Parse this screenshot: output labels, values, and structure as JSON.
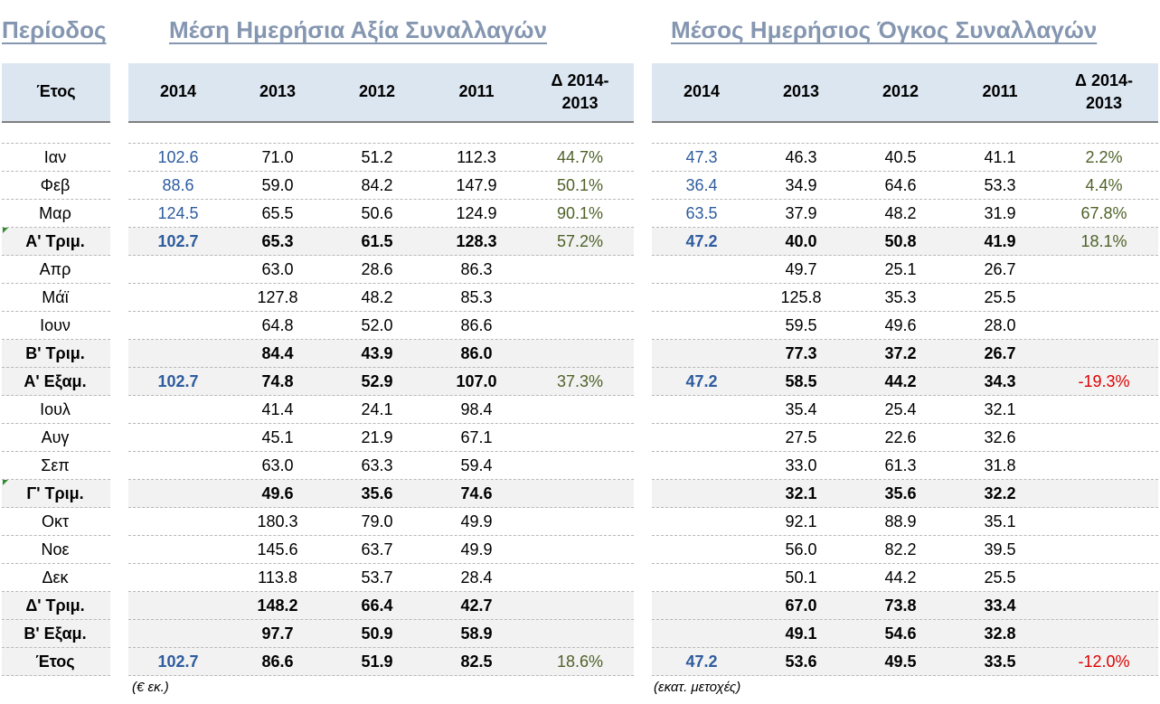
{
  "headers": {
    "period": "Περίοδος",
    "value": "Μέση Ημερήσια Αξία Συναλλαγών",
    "volume": "Μέσος Ημερήσιος Όγκος Συναλλαγών"
  },
  "columns": {
    "year_label": "Έτος",
    "years": [
      "2014",
      "2013",
      "2012",
      "2011"
    ],
    "delta": "Δ 2014-\n2013"
  },
  "rows": [
    {
      "label": "Ιαν",
      "bold": false,
      "v": [
        "102.6",
        "71.0",
        "51.2",
        "112.3",
        "44.7%"
      ],
      "o": [
        "47.3",
        "46.3",
        "40.5",
        "41.1",
        "2.2%"
      ]
    },
    {
      "label": "Φεβ",
      "bold": false,
      "v": [
        "88.6",
        "59.0",
        "84.2",
        "147.9",
        "50.1%"
      ],
      "o": [
        "36.4",
        "34.9",
        "64.6",
        "53.3",
        "4.4%"
      ]
    },
    {
      "label": "Μαρ",
      "bold": false,
      "v": [
        "124.5",
        "65.5",
        "50.6",
        "124.9",
        "90.1%"
      ],
      "o": [
        "63.5",
        "37.9",
        "48.2",
        "31.9",
        "67.8%"
      ]
    },
    {
      "label": "Α' Τριμ.",
      "bold": true,
      "v": [
        "102.7",
        "65.3",
        "61.5",
        "128.3",
        "57.2%"
      ],
      "o": [
        "47.2",
        "40.0",
        "50.8",
        "41.9",
        "18.1%"
      ]
    },
    {
      "label": "Απρ",
      "bold": false,
      "v": [
        "",
        "63.0",
        "28.6",
        "86.3",
        ""
      ],
      "o": [
        "",
        "49.7",
        "25.1",
        "26.7",
        ""
      ]
    },
    {
      "label": "Μάϊ",
      "bold": false,
      "v": [
        "",
        "127.8",
        "48.2",
        "85.3",
        ""
      ],
      "o": [
        "",
        "125.8",
        "35.3",
        "25.5",
        ""
      ]
    },
    {
      "label": "Ιουν",
      "bold": false,
      "v": [
        "",
        "64.8",
        "52.0",
        "86.6",
        ""
      ],
      "o": [
        "",
        "59.5",
        "49.6",
        "28.0",
        ""
      ]
    },
    {
      "label": "Β' Τριμ.",
      "bold": true,
      "v": [
        "",
        "84.4",
        "43.9",
        "86.0",
        ""
      ],
      "o": [
        "",
        "77.3",
        "37.2",
        "26.7",
        ""
      ]
    },
    {
      "label": "Α' Εξαμ.",
      "bold": true,
      "v": [
        "102.7",
        "74.8",
        "52.9",
        "107.0",
        "37.3%"
      ],
      "o": [
        "47.2",
        "58.5",
        "44.2",
        "34.3",
        "-19.3%"
      ]
    },
    {
      "label": "Ιουλ",
      "bold": false,
      "v": [
        "",
        "41.4",
        "24.1",
        "98.4",
        ""
      ],
      "o": [
        "",
        "35.4",
        "25.4",
        "32.1",
        ""
      ]
    },
    {
      "label": "Αυγ",
      "bold": false,
      "v": [
        "",
        "45.1",
        "21.9",
        "67.1",
        ""
      ],
      "o": [
        "",
        "27.5",
        "22.6",
        "32.6",
        ""
      ]
    },
    {
      "label": "Σεπ",
      "bold": false,
      "v": [
        "",
        "63.0",
        "63.3",
        "59.4",
        ""
      ],
      "o": [
        "",
        "33.0",
        "61.3",
        "31.8",
        ""
      ]
    },
    {
      "label": "Γ' Τριμ.",
      "bold": true,
      "v": [
        "",
        "49.6",
        "35.6",
        "74.6",
        ""
      ],
      "o": [
        "",
        "32.1",
        "35.6",
        "32.2",
        ""
      ]
    },
    {
      "label": "Οκτ",
      "bold": false,
      "v": [
        "",
        "180.3",
        "79.0",
        "49.9",
        ""
      ],
      "o": [
        "",
        "92.1",
        "88.9",
        "35.1",
        ""
      ]
    },
    {
      "label": "Νοε",
      "bold": false,
      "v": [
        "",
        "145.6",
        "63.7",
        "49.9",
        ""
      ],
      "o": [
        "",
        "56.0",
        "82.2",
        "39.5",
        ""
      ]
    },
    {
      "label": "Δεκ",
      "bold": false,
      "v": [
        "",
        "113.8",
        "53.7",
        "28.4",
        ""
      ],
      "o": [
        "",
        "50.1",
        "44.2",
        "25.5",
        ""
      ]
    },
    {
      "label": "Δ' Τριμ.",
      "bold": true,
      "v": [
        "",
        "148.2",
        "66.4",
        "42.7",
        ""
      ],
      "o": [
        "",
        "67.0",
        "73.8",
        "33.4",
        ""
      ]
    },
    {
      "label": "Β' Εξαμ.",
      "bold": true,
      "v": [
        "",
        "97.7",
        "50.9",
        "58.9",
        ""
      ],
      "o": [
        "",
        "49.1",
        "54.6",
        "32.8",
        ""
      ]
    },
    {
      "label": "Έτος",
      "bold": true,
      "v": [
        "102.7",
        "86.6",
        "51.9",
        "82.5",
        "18.6%"
      ],
      "o": [
        "47.2",
        "53.6",
        "49.5",
        "33.5",
        "-12.0%"
      ]
    }
  ],
  "footnotes": {
    "value": "(€ εκ.)",
    "volume": "(εκατ. μετοχές)"
  },
  "colors": {
    "header_text": "#8496b0",
    "header_bg": "#dce6f1",
    "year2014": "#2e5c9e",
    "delta_positive": "#4f6228",
    "delta_negative": "#e00000",
    "row_highlight": "#f2f2f2"
  }
}
